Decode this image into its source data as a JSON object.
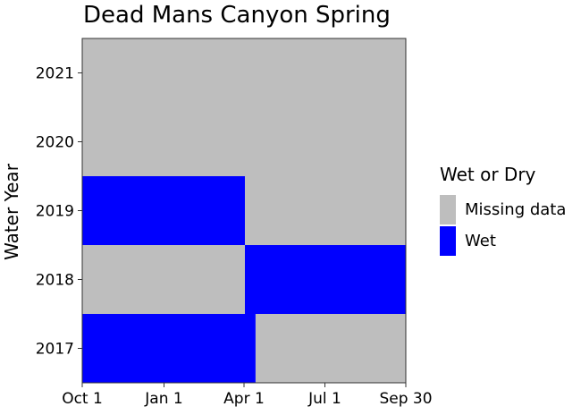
{
  "chart_data": {
    "type": "heatmap",
    "title": "Dead Mans Canyon Spring",
    "xlabel": "",
    "ylabel": "Water Year",
    "x_ticks": [
      "Oct 1",
      "Jan 1",
      "Apr 1",
      "Jul 1",
      "Sep 30"
    ],
    "x_tick_days": [
      0,
      92,
      182,
      273,
      364
    ],
    "x_range_days": [
      0,
      364
    ],
    "y_categories": [
      "2017",
      "2018",
      "2019",
      "2020",
      "2021"
    ],
    "legend": {
      "title": "Wet or Dry",
      "position": "right",
      "entries": [
        {
          "label": "Missing data",
          "color": "#bebebe"
        },
        {
          "label": "Wet",
          "color": "#0000ff"
        }
      ]
    },
    "segments": [
      {
        "year": "2017",
        "status": "Wet",
        "start": "Oct 1",
        "end": "Apr 14"
      },
      {
        "year": "2017",
        "status": "Missing data",
        "start": "Apr 14",
        "end": "Sep 30"
      },
      {
        "year": "2018",
        "status": "Missing data",
        "start": "Oct 1",
        "end": "Apr 2"
      },
      {
        "year": "2018",
        "status": "Wet",
        "start": "Apr 2",
        "end": "Sep 30"
      },
      {
        "year": "2019",
        "status": "Wet",
        "start": "Oct 1",
        "end": "Apr 2"
      },
      {
        "year": "2019",
        "status": "Missing data",
        "start": "Apr 2",
        "end": "Sep 30"
      },
      {
        "year": "2020",
        "status": "Missing data",
        "start": "Oct 1",
        "end": "Sep 30"
      },
      {
        "year": "2021",
        "status": "Missing data",
        "start": "Oct 1",
        "end": "Sep 30"
      }
    ],
    "grid": false
  }
}
